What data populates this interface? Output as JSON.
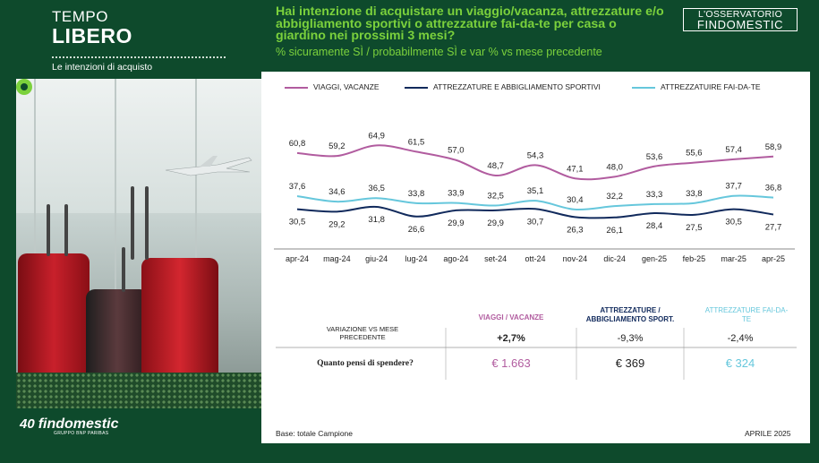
{
  "header": {
    "title_line1": "TEMPO",
    "title_line2": "LIBERO",
    "subtitle": "Le intenzioni di acquisto",
    "question": "Hai intenzione di acquistare un viaggio/vacanza, attrezzature e/o abbigliamento sportivi o attrezzature fai-da-te per casa o giardino nei prossimi 3 mesi?",
    "measure": "% sicuramente SÌ / probabilmente SÌ e var % vs mese precedente",
    "brand_line1": "L'OSSERVATORIO",
    "brand_line2": "FINDOMESTIC"
  },
  "logo": {
    "text": "findomestic",
    "anniversary": "40",
    "tagline": "GRUPPO BNP PARIBAS"
  },
  "colors": {
    "viaggi": "#b15c9f",
    "sport": "#112a5c",
    "faidate": "#66c7dc",
    "accent": "#7bd13c",
    "background": "#0e4a2c"
  },
  "chart_data": {
    "type": "line",
    "categories": [
      "apr-24",
      "mag-24",
      "giu-24",
      "lug-24",
      "ago-24",
      "set-24",
      "ott-24",
      "nov-24",
      "dic-24",
      "gen-25",
      "feb-25",
      "mar-25",
      "apr-25"
    ],
    "series": [
      {
        "name": "VIAGGI, VACANZE",
        "values": [
          60.8,
          59.2,
          64.9,
          61.5,
          57.0,
          48.7,
          54.3,
          47.1,
          48.0,
          53.6,
          55.6,
          57.4,
          58.9
        ]
      },
      {
        "name": "ATTREZZATURE E ABBIGLIAMENTO SPORTIVI",
        "values": [
          30.5,
          29.2,
          31.8,
          26.6,
          29.9,
          29.9,
          30.7,
          26.3,
          26.1,
          28.4,
          27.5,
          30.5,
          27.7
        ]
      },
      {
        "name": "ATTREZZATUIRE FAI-DA-TE",
        "values": [
          37.6,
          34.6,
          36.5,
          33.8,
          33.9,
          32.5,
          35.1,
          30.4,
          32.2,
          33.3,
          33.8,
          37.7,
          36.8
        ]
      }
    ],
    "labels": [
      [
        "60,8",
        "59,2",
        "64,9",
        "61,5",
        "57,0",
        "48,7",
        "54,3",
        "47,1",
        "48,0",
        "53,6",
        "55,6",
        "57,4",
        "58,9"
      ],
      [
        "30,5",
        "29,2",
        "31,8",
        "26,6",
        "29,9",
        "29,9",
        "30,7",
        "26,3",
        "26,1",
        "28,4",
        "27,5",
        "30,5",
        "27,7"
      ],
      [
        "37,6",
        "34,6",
        "36,5",
        "33,8",
        "33,9",
        "32,5",
        "35,1",
        "30,4",
        "32,2",
        "33,3",
        "33,8",
        "37,7",
        "36,8"
      ]
    ],
    "legend_placement": "top",
    "grid": false
  },
  "table": {
    "col_headers": [
      "VIAGGI / VACANZE",
      "ATTREZZATURE / ABBIGLIAMENTO SPORT.",
      "ATTREZZATURE FAI-DA-TE"
    ],
    "row1_label": "VARIAZIONE VS MESE PRECEDENTE",
    "row1_values": [
      "+2,7%",
      "-9,3%",
      "-2,4%"
    ],
    "row2_label": "Quanto pensi di spendere?",
    "row2_values": [
      "€ 1.663",
      "€ 369",
      "€ 324"
    ]
  },
  "footer": {
    "base": "Base: totale Campione",
    "date": "APRILE 2025"
  }
}
